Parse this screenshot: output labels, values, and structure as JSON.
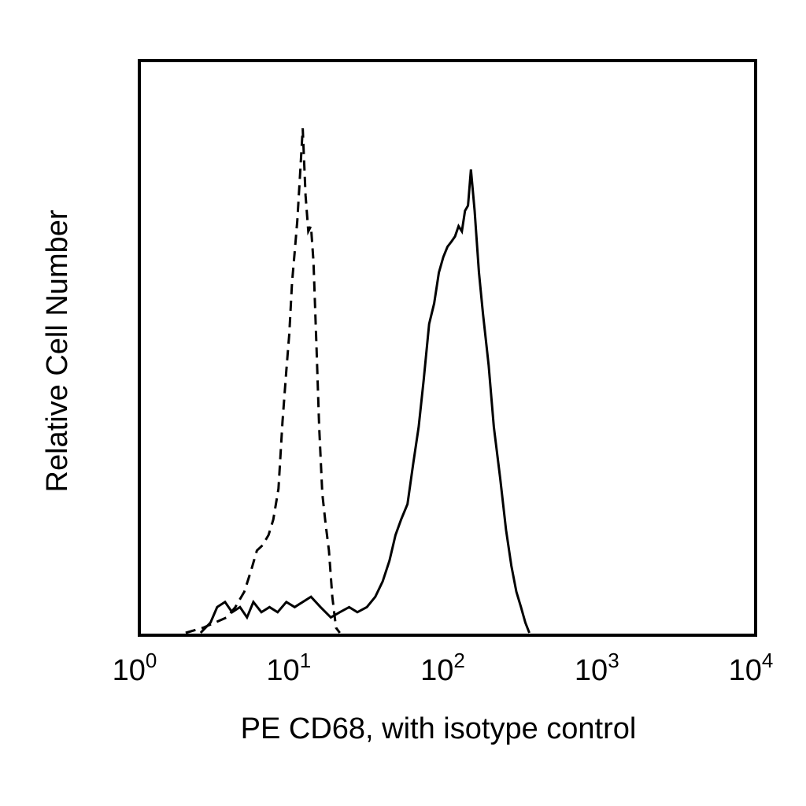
{
  "chart_data": {
    "type": "line",
    "title": "",
    "xlabel": "PE CD68, with isotype control",
    "ylabel": "Relative Cell Number",
    "x_scale": "log",
    "xlim": [
      1,
      10000
    ],
    "ylim": [
      0,
      100
    ],
    "grid": false,
    "legend": "none",
    "x_ticks": [
      {
        "base": "10",
        "exp": "0",
        "value": 1
      },
      {
        "base": "10",
        "exp": "1",
        "value": 10
      },
      {
        "base": "10",
        "exp": "2",
        "value": 100
      },
      {
        "base": "10",
        "exp": "3",
        "value": 1000
      },
      {
        "base": "10",
        "exp": "4",
        "value": 10000
      }
    ],
    "series": [
      {
        "style": "dashed",
        "color": "#000000",
        "x": [
          2.0,
          2.6,
          3.1,
          3.7,
          4.2,
          4.8,
          5.3,
          5.8,
          6.3,
          6.9,
          7.4,
          8.0,
          8.5,
          9.0,
          9.4,
          9.8,
          10.2,
          10.6,
          11.1,
          11.5,
          12.0,
          12.5,
          13.0,
          13.5,
          14.1,
          14.7,
          15.4,
          16.2,
          17.0,
          17.9,
          18.9,
          20.0
        ],
        "y": [
          0,
          1,
          2,
          3,
          5,
          8,
          12,
          16,
          17,
          19,
          22,
          28,
          41,
          51,
          58,
          68,
          74,
          80,
          90,
          98,
          85,
          78,
          79,
          72,
          56,
          40,
          27,
          21,
          16,
          7,
          1,
          0
        ]
      },
      {
        "style": "solid",
        "color": "#000000",
        "x": [
          2.5,
          2.9,
          3.2,
          3.6,
          4.0,
          4.5,
          5.0,
          5.5,
          6.2,
          7.0,
          7.9,
          9.0,
          10.2,
          11.5,
          13.0,
          15.0,
          17.5,
          20.0,
          23.0,
          26.0,
          30.0,
          34.0,
          38.0,
          42.0,
          46.0,
          50.0,
          55.0,
          60.0,
          65.0,
          70.0,
          76.0,
          82.0,
          88.0,
          94.0,
          100.0,
          106.0,
          112.0,
          118.0,
          124.0,
          130.0,
          136.0,
          142.0,
          150.0,
          160.0,
          170.0,
          185.0,
          200.0,
          220.0,
          240.0,
          260.0,
          280.0,
          300.0,
          320.0,
          340.0
        ],
        "y": [
          0,
          2,
          5,
          6,
          4,
          5,
          3,
          6,
          4,
          5,
          4,
          6,
          5,
          6,
          7,
          5,
          3,
          4,
          5,
          4,
          5,
          7,
          10,
          14,
          19,
          22,
          25,
          33,
          40,
          49,
          60,
          64,
          70,
          73,
          75,
          76,
          77,
          79,
          78,
          82,
          83,
          90,
          82,
          70,
          62,
          52,
          40,
          30,
          20,
          13,
          8,
          5,
          2,
          0
        ]
      }
    ]
  }
}
